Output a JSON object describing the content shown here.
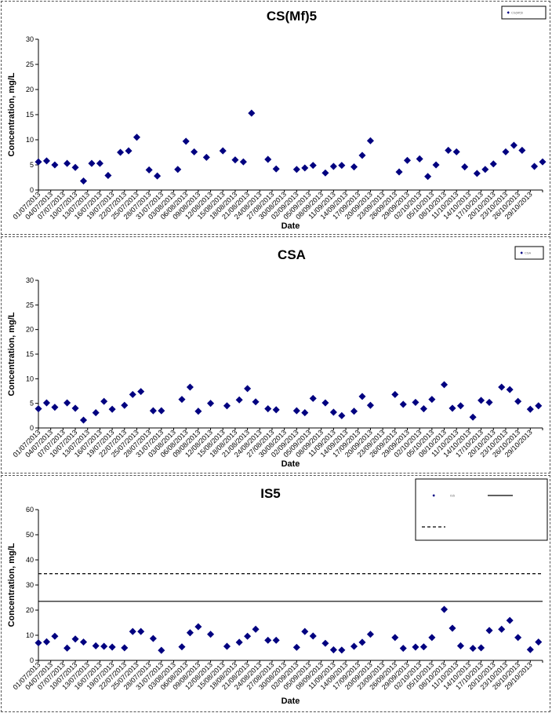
{
  "chart_data": [
    {
      "type": "scatter",
      "title": "CS(Mf)5",
      "xlabel": "Date",
      "ylabel": "Concentration, mg/L",
      "ylim": [
        0,
        30
      ],
      "yticks": [
        0,
        5,
        10,
        15,
        20,
        25,
        30
      ],
      "xlim": [
        "01/07/2013",
        "01/11/2013"
      ],
      "xtick_labels": [
        "01/07/2013",
        "04/07/2013",
        "07/07/2013",
        "10/07/2013",
        "13/07/2013",
        "16/07/2013",
        "19/07/2013",
        "22/07/2013",
        "25/07/2013",
        "28/07/2013",
        "31/07/2013",
        "03/08/2013",
        "06/08/2013",
        "09/08/2013",
        "12/08/2013",
        "15/08/2013",
        "18/08/2013",
        "21/08/2013",
        "24/08/2013",
        "27/08/2013",
        "30/08/2013",
        "02/09/2013",
        "05/09/2013",
        "08/09/2013",
        "11/09/2013",
        "14/09/2013",
        "17/09/2013",
        "20/09/2013",
        "23/09/2013",
        "26/09/2013",
        "29/09/2013",
        "02/10/2013",
        "05/10/2013",
        "08/10/2013",
        "11/10/2013",
        "14/10/2013",
        "17/10/2013",
        "20/10/2013",
        "23/10/2013",
        "26/10/2013",
        "29/10/2013"
      ],
      "legend": "top-right",
      "series": [
        {
          "name": "CS(Mf)5",
          "color": "#000080",
          "points": [
            [
              "01/07/2013",
              5.6
            ],
            [
              "03/07/2013",
              5.8
            ],
            [
              "05/07/2013",
              5.0
            ],
            [
              "08/07/2013",
              5.3
            ],
            [
              "10/07/2013",
              4.5
            ],
            [
              "12/07/2013",
              1.8
            ],
            [
              "14/07/2013",
              5.3
            ],
            [
              "16/07/2013",
              5.3
            ],
            [
              "18/07/2013",
              2.9
            ],
            [
              "21/07/2013",
              7.5
            ],
            [
              "23/07/2013",
              7.8
            ],
            [
              "25/07/2013",
              10.5
            ],
            [
              "28/07/2013",
              4.0
            ],
            [
              "30/07/2013",
              2.8
            ],
            [
              "04/08/2013",
              4.1
            ],
            [
              "06/08/2013",
              9.7
            ],
            [
              "08/08/2013",
              7.6
            ],
            [
              "11/08/2013",
              6.5
            ],
            [
              "15/08/2013",
              7.8
            ],
            [
              "18/08/2013",
              6.0
            ],
            [
              "20/08/2013",
              5.6
            ],
            [
              "22/08/2013",
              15.3
            ],
            [
              "26/08/2013",
              6.1
            ],
            [
              "28/08/2013",
              4.2
            ],
            [
              "02/09/2013",
              4.1
            ],
            [
              "04/09/2013",
              4.4
            ],
            [
              "06/09/2013",
              4.9
            ],
            [
              "09/09/2013",
              3.4
            ],
            [
              "11/09/2013",
              4.7
            ],
            [
              "13/09/2013",
              4.9
            ],
            [
              "16/09/2013",
              4.6
            ],
            [
              "18/09/2013",
              6.9
            ],
            [
              "20/09/2013",
              9.8
            ],
            [
              "27/09/2013",
              3.6
            ],
            [
              "29/09/2013",
              5.9
            ],
            [
              "02/10/2013",
              6.2
            ],
            [
              "04/10/2013",
              2.7
            ],
            [
              "06/10/2013",
              5.0
            ],
            [
              "09/10/2013",
              7.9
            ],
            [
              "11/10/2013",
              7.6
            ],
            [
              "13/10/2013",
              4.6
            ],
            [
              "16/10/2013",
              3.3
            ],
            [
              "18/10/2013",
              4.1
            ],
            [
              "20/10/2013",
              5.2
            ],
            [
              "23/10/2013",
              7.6
            ],
            [
              "25/10/2013",
              8.9
            ],
            [
              "27/10/2013",
              7.9
            ],
            [
              "30/10/2013",
              4.7
            ],
            [
              "01/11/2013",
              5.6
            ]
          ]
        }
      ]
    },
    {
      "type": "scatter",
      "title": "CSA",
      "xlabel": "Date",
      "ylabel": "Concentration, mg/L",
      "ylim": [
        0,
        30
      ],
      "yticks": [
        0,
        5,
        10,
        15,
        20,
        25,
        30
      ],
      "xlim": [
        "01/07/2013",
        "01/11/2013"
      ],
      "xtick_labels": [
        "01/07/2013",
        "04/07/2013",
        "07/07/2013",
        "10/07/2013",
        "13/07/2013",
        "16/07/2013",
        "19/07/2013",
        "22/07/2013",
        "25/07/2013",
        "28/07/2013",
        "31/07/2013",
        "03/08/2013",
        "06/08/2013",
        "09/08/2013",
        "12/08/2013",
        "15/08/2013",
        "18/08/2013",
        "21/08/2013",
        "24/08/2013",
        "27/08/2013",
        "30/08/2013",
        "02/09/2013",
        "05/09/2013",
        "08/09/2013",
        "11/09/2013",
        "14/09/2013",
        "17/09/2013",
        "20/09/2013",
        "23/09/2013",
        "26/09/2013",
        "29/09/2013",
        "02/10/2013",
        "05/10/2013",
        "08/10/2013",
        "11/10/2013",
        "14/10/2013",
        "17/10/2013",
        "20/10/2013",
        "23/10/2013",
        "26/10/2013",
        "29/10/2013"
      ],
      "legend": "top-right",
      "series": [
        {
          "name": "CSA",
          "color": "#000080",
          "points": [
            [
              "01/07/2013",
              3.9
            ],
            [
              "03/07/2013",
              5.1
            ],
            [
              "05/07/2013",
              4.2
            ],
            [
              "08/07/2013",
              5.1
            ],
            [
              "10/07/2013",
              4.0
            ],
            [
              "12/07/2013",
              1.6
            ],
            [
              "15/07/2013",
              3.1
            ],
            [
              "17/07/2013",
              5.4
            ],
            [
              "19/07/2013",
              3.8
            ],
            [
              "22/07/2013",
              4.6
            ],
            [
              "24/07/2013",
              6.8
            ],
            [
              "26/07/2013",
              7.4
            ],
            [
              "29/07/2013",
              3.5
            ],
            [
              "31/07/2013",
              3.5
            ],
            [
              "05/08/2013",
              5.8
            ],
            [
              "07/08/2013",
              8.3
            ],
            [
              "09/08/2013",
              3.4
            ],
            [
              "12/08/2013",
              5.0
            ],
            [
              "16/08/2013",
              4.5
            ],
            [
              "19/08/2013",
              5.7
            ],
            [
              "21/08/2013",
              8.0
            ],
            [
              "23/08/2013",
              5.3
            ],
            [
              "26/08/2013",
              3.9
            ],
            [
              "28/08/2013",
              3.7
            ],
            [
              "02/09/2013",
              3.5
            ],
            [
              "04/09/2013",
              3.1
            ],
            [
              "06/09/2013",
              6.0
            ],
            [
              "09/09/2013",
              5.1
            ],
            [
              "11/09/2013",
              3.2
            ],
            [
              "13/09/2013",
              2.5
            ],
            [
              "16/09/2013",
              3.4
            ],
            [
              "18/09/2013",
              6.4
            ],
            [
              "20/09/2013",
              4.6
            ],
            [
              "26/09/2013",
              6.8
            ],
            [
              "28/09/2013",
              4.8
            ],
            [
              "01/10/2013",
              5.2
            ],
            [
              "03/10/2013",
              3.9
            ],
            [
              "05/10/2013",
              5.8
            ],
            [
              "08/10/2013",
              8.8
            ],
            [
              "10/10/2013",
              4.0
            ],
            [
              "12/10/2013",
              4.5
            ],
            [
              "15/10/2013",
              2.2
            ],
            [
              "17/10/2013",
              5.6
            ],
            [
              "19/10/2013",
              5.2
            ],
            [
              "22/10/2013",
              8.3
            ],
            [
              "24/10/2013",
              7.8
            ],
            [
              "26/10/2013",
              5.4
            ],
            [
              "29/10/2013",
              3.8
            ],
            [
              "31/10/2013",
              4.5
            ]
          ]
        }
      ]
    },
    {
      "type": "scatter",
      "title": "IS5",
      "xlabel": "Date",
      "ylabel": "Concentration, mg/L",
      "ylim": [
        0,
        60
      ],
      "yticks": [
        0,
        10,
        20,
        30,
        40,
        50,
        60
      ],
      "xlim": [
        "01/07/2013",
        "01/11/2013"
      ],
      "xtick_labels": [
        "01/07/2013",
        "04/07/2013",
        "07/07/2013",
        "10/07/2013",
        "13/07/2013",
        "16/07/2013",
        "19/07/2013",
        "22/07/2013",
        "25/07/2013",
        "28/07/2013",
        "31/07/2013",
        "03/08/2013",
        "06/08/2013",
        "09/08/2013",
        "12/08/2013",
        "15/08/2013",
        "18/08/2013",
        "21/08/2013",
        "24/08/2013",
        "27/08/2013",
        "30/08/2013",
        "02/09/2013",
        "05/09/2013",
        "08/09/2013",
        "11/09/2013",
        "14/09/2013",
        "17/09/2013",
        "20/09/2013",
        "23/09/2013",
        "26/09/2013",
        "29/09/2013",
        "02/10/2013",
        "05/10/2013",
        "08/10/2013",
        "11/10/2013",
        "14/10/2013",
        "17/10/2013",
        "20/10/2013",
        "23/10/2013",
        "26/10/2013",
        "29/10/2013"
      ],
      "legend": "top-right",
      "series": [
        {
          "name": "IS5",
          "color": "#000080",
          "points": [
            [
              "01/07/2013",
              7.0
            ],
            [
              "03/07/2013",
              7.4
            ],
            [
              "05/07/2013",
              9.6
            ],
            [
              "08/07/2013",
              4.9
            ],
            [
              "10/07/2013",
              8.5
            ],
            [
              "12/07/2013",
              7.3
            ],
            [
              "15/07/2013",
              5.8
            ],
            [
              "17/07/2013",
              5.6
            ],
            [
              "19/07/2013",
              5.3
            ],
            [
              "22/07/2013",
              5.0
            ],
            [
              "24/07/2013",
              11.5
            ],
            [
              "26/07/2013",
              11.5
            ],
            [
              "29/07/2013",
              8.7
            ],
            [
              "31/07/2013",
              4.0
            ],
            [
              "05/08/2013",
              5.4
            ],
            [
              "07/08/2013",
              11.0
            ],
            [
              "09/08/2013",
              13.4
            ],
            [
              "12/08/2013",
              10.4
            ],
            [
              "16/08/2013",
              5.6
            ],
            [
              "19/08/2013",
              7.2
            ],
            [
              "21/08/2013",
              9.6
            ],
            [
              "23/08/2013",
              12.4
            ],
            [
              "26/08/2013",
              8.0
            ],
            [
              "28/08/2013",
              8.0
            ],
            [
              "02/09/2013",
              5.2
            ],
            [
              "04/09/2013",
              11.5
            ],
            [
              "06/09/2013",
              9.7
            ],
            [
              "09/09/2013",
              6.8
            ],
            [
              "11/09/2013",
              4.2
            ],
            [
              "13/09/2013",
              4.1
            ],
            [
              "16/09/2013",
              5.6
            ],
            [
              "18/09/2013",
              7.2
            ],
            [
              "20/09/2013",
              10.4
            ],
            [
              "26/09/2013",
              9.1
            ],
            [
              "28/09/2013",
              4.8
            ],
            [
              "01/10/2013",
              5.3
            ],
            [
              "03/10/2013",
              5.4
            ],
            [
              "05/10/2013",
              9.1
            ],
            [
              "08/10/2013",
              20.3
            ],
            [
              "10/10/2013",
              12.8
            ],
            [
              "12/10/2013",
              5.8
            ],
            [
              "15/10/2013",
              4.8
            ],
            [
              "17/10/2013",
              5.0
            ],
            [
              "19/10/2013",
              11.9
            ],
            [
              "22/10/2013",
              12.4
            ],
            [
              "24/10/2013",
              15.9
            ],
            [
              "26/10/2013",
              9.1
            ],
            [
              "29/10/2013",
              4.3
            ],
            [
              "31/10/2013",
              7.3
            ]
          ]
        },
        {
          "name": "",
          "style": "solid",
          "color": "#000000",
          "y": 23.5
        },
        {
          "name": "",
          "style": "dashed",
          "color": "#000000",
          "y": 34.5
        }
      ]
    }
  ]
}
